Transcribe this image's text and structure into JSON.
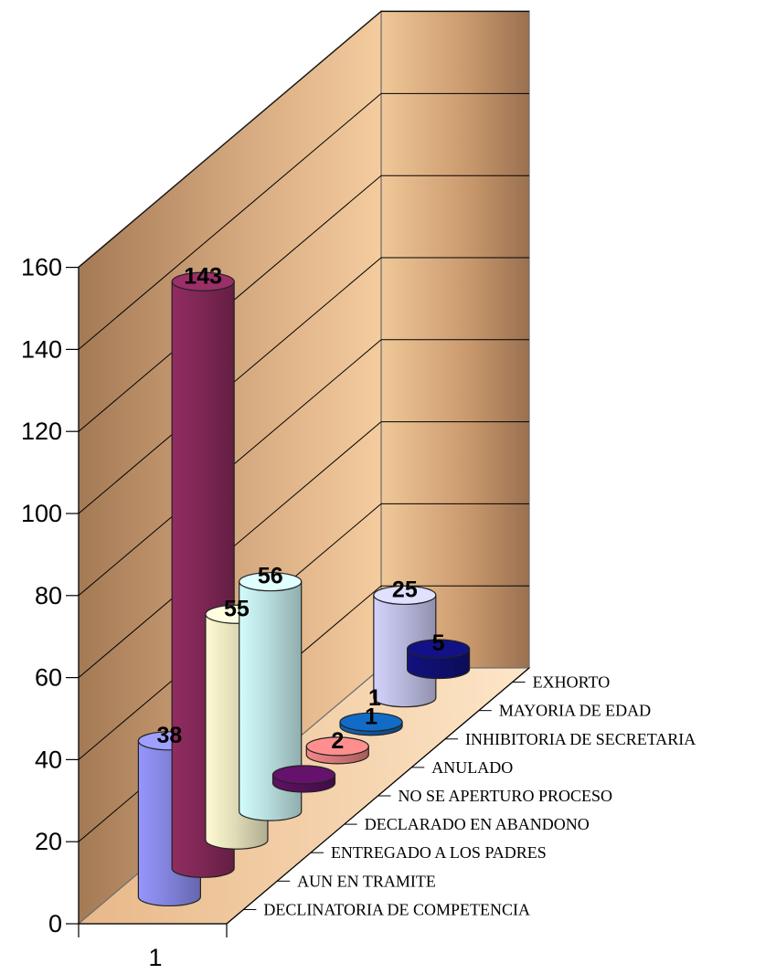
{
  "chart_data": {
    "type": "bar",
    "categories": [
      "1"
    ],
    "series": [
      {
        "name": "DECLINATORIA DE COMPETENCIA",
        "values": [
          38
        ],
        "color": "#8e8ef0"
      },
      {
        "name": "AUN EN TRAMITE",
        "values": [
          143
        ],
        "color": "#8a2a5c"
      },
      {
        "name": "ENTREGADO A LOS PADRES",
        "values": [
          55
        ],
        "color": "#f4f0c8"
      },
      {
        "name": "DECLARADO EN ABANDONO",
        "values": [
          56
        ],
        "color": "#c8f0f0"
      },
      {
        "name": "NO SE APERTURO PROCESO",
        "values": [
          2
        ],
        "color": "#5a1060"
      },
      {
        "name": "ANULADO",
        "values": [
          2
        ],
        "color": "#e88080"
      },
      {
        "name": "INHIBITORIA DE SECRETARIA",
        "values": [
          1
        ],
        "color": "#1060b0"
      },
      {
        "name": "MAYORIA DE EDAD",
        "values": [
          25
        ],
        "color": "#c8c8f0"
      },
      {
        "name": "EXHORTO",
        "values": [
          5
        ],
        "color": "#101078"
      }
    ],
    "data_labels": [
      "38",
      "143",
      "55",
      "56",
      "",
      "2",
      "1",
      "25",
      "5"
    ],
    "extra_labels": [
      "1"
    ],
    "yticks": [
      "0",
      "20",
      "40",
      "60",
      "80",
      "100",
      "120",
      "140",
      "160"
    ],
    "ylim": [
      0,
      160
    ],
    "title": "",
    "xlabel": "",
    "ylabel": ""
  }
}
